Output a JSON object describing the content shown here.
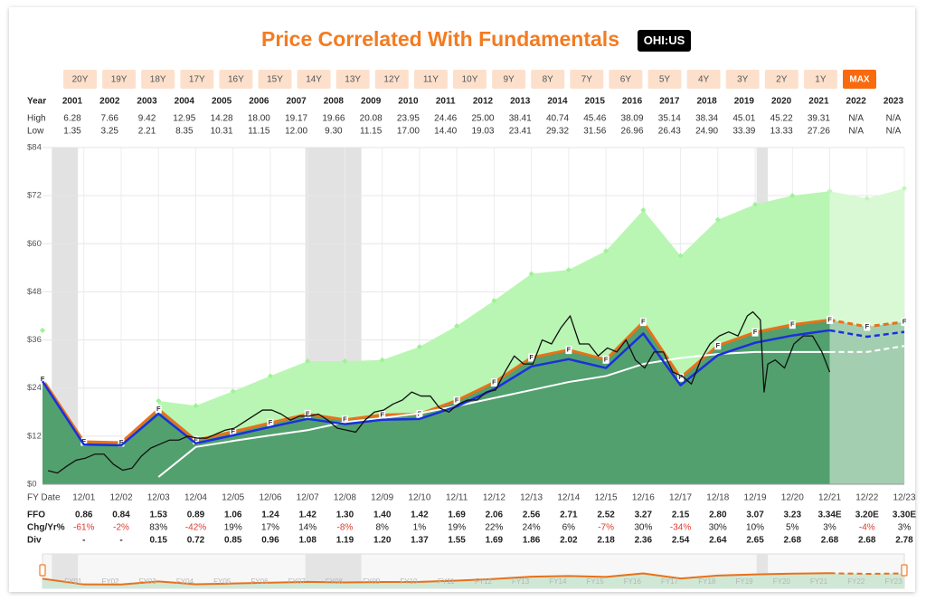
{
  "header": {
    "title": "Price Correlated With Fundamentals",
    "ticker": "OHI:US"
  },
  "range_buttons": [
    "20Y",
    "19Y",
    "18Y",
    "17Y",
    "16Y",
    "15Y",
    "14Y",
    "13Y",
    "12Y",
    "11Y",
    "10Y",
    "9Y",
    "8Y",
    "7Y",
    "6Y",
    "5Y",
    "4Y",
    "3Y",
    "2Y",
    "1Y",
    "MAX"
  ],
  "active_range": "MAX",
  "year_table": {
    "header_label": "Year",
    "years": [
      "2001",
      "2002",
      "2003",
      "2004",
      "2005",
      "2006",
      "2007",
      "2008",
      "2009",
      "2010",
      "2011",
      "2012",
      "2013",
      "2014",
      "2015",
      "2016",
      "2017",
      "2018",
      "2019",
      "2020",
      "2021",
      "2022",
      "2023"
    ],
    "rows": [
      {
        "label": "High",
        "values": [
          "6.28",
          "7.66",
          "9.42",
          "12.95",
          "14.28",
          "18.00",
          "19.17",
          "19.66",
          "20.08",
          "23.95",
          "24.46",
          "25.00",
          "38.41",
          "40.74",
          "45.46",
          "38.09",
          "35.14",
          "38.34",
          "45.01",
          "45.22",
          "39.31",
          "N/A",
          "N/A"
        ]
      },
      {
        "label": "Low",
        "values": [
          "1.35",
          "3.25",
          "2.21",
          "8.35",
          "10.31",
          "11.15",
          "12.00",
          "9.30",
          "11.15",
          "17.00",
          "14.40",
          "19.03",
          "23.41",
          "29.32",
          "31.56",
          "26.96",
          "26.43",
          "24.90",
          "33.39",
          "13.33",
          "27.26",
          "N/A",
          "N/A"
        ]
      }
    ]
  },
  "chart_data": {
    "type": "line",
    "x_label": "FY Date",
    "vertex_label": "F",
    "grid": true,
    "xlim": [
      2000.85,
      2023.96
    ],
    "ylim": [
      0,
      84
    ],
    "yticks": [
      {
        "value": 0,
        "label": "$0"
      },
      {
        "value": 12,
        "label": "$12"
      },
      {
        "value": 24,
        "label": "$24"
      },
      {
        "value": 36,
        "label": "$36"
      },
      {
        "value": 48,
        "label": "$48"
      },
      {
        "value": 60,
        "label": "$60"
      },
      {
        "value": 72,
        "label": "$72"
      },
      {
        "value": 84,
        "label": "$84"
      }
    ],
    "xticks": [
      {
        "value": 2001.96,
        "label": "12/01"
      },
      {
        "value": 2002.96,
        "label": "12/02"
      },
      {
        "value": 2003.96,
        "label": "12/03"
      },
      {
        "value": 2004.96,
        "label": "12/04"
      },
      {
        "value": 2005.96,
        "label": "12/05"
      },
      {
        "value": 2006.96,
        "label": "12/06"
      },
      {
        "value": 2007.96,
        "label": "12/07"
      },
      {
        "value": 2008.96,
        "label": "12/08"
      },
      {
        "value": 2009.96,
        "label": "12/09"
      },
      {
        "value": 2010.96,
        "label": "12/10"
      },
      {
        "value": 2011.96,
        "label": "12/11"
      },
      {
        "value": 2012.96,
        "label": "12/12"
      },
      {
        "value": 2013.96,
        "label": "12/13"
      },
      {
        "value": 2014.96,
        "label": "12/14"
      },
      {
        "value": 2015.96,
        "label": "12/15"
      },
      {
        "value": 2016.96,
        "label": "12/16"
      },
      {
        "value": 2017.96,
        "label": "12/17"
      },
      {
        "value": 2018.96,
        "label": "12/18"
      },
      {
        "value": 2019.96,
        "label": "12/19"
      },
      {
        "value": 2020.96,
        "label": "12/20"
      },
      {
        "value": 2021.96,
        "label": "12/21"
      },
      {
        "value": 2022.96,
        "label": "12/22"
      },
      {
        "value": 2023.96,
        "label": "12/23"
      }
    ],
    "shaded_periods": [
      [
        2001.1,
        2001.8
      ],
      [
        2007.9,
        2009.4
      ],
      [
        2020.0,
        2020.3
      ]
    ],
    "x": [
      2000.85,
      2001.96,
      2002.96,
      2003.96,
      2004.96,
      2005.96,
      2006.96,
      2007.96,
      2008.96,
      2009.96,
      2010.96,
      2011.96,
      2012.96,
      2013.96,
      2014.96,
      2015.96,
      2016.96,
      2017.96,
      2018.96,
      2019.96,
      2020.96,
      2021.96,
      2022.96,
      2023.96
    ],
    "series": [
      {
        "color": "#9ef297",
        "fill": "#b9f6b3",
        "markers": true,
        "values": [
          38.4,
          null,
          null,
          20.8,
          19.6,
          23.2,
          27,
          30.7,
          30.7,
          31,
          34.3,
          39.5,
          45.8,
          52.5,
          53.5,
          58.2,
          68.4,
          57,
          66,
          69.8,
          72,
          73.1,
          null,
          null
        ]
      },
      {
        "color": "#c2f5bd",
        "fill": "#d8f9d4",
        "markers": true,
        "values": [
          null,
          null,
          null,
          null,
          null,
          null,
          null,
          null,
          null,
          null,
          null,
          null,
          null,
          null,
          null,
          null,
          null,
          null,
          null,
          null,
          null,
          73.1,
          71.3,
          73.8
        ]
      },
      {
        "color": "#e8711a",
        "fill": "#52a06e",
        "width": 3,
        "labeled": true,
        "in_navigator": true,
        "values": [
          26.2,
          10.6,
          10.4,
          18.7,
          11.0,
          13.1,
          15.3,
          17.5,
          16.1,
          17.3,
          17.5,
          20.9,
          25.4,
          31.6,
          33.5,
          31.1,
          40.5,
          26.6,
          34.6,
          37.9,
          39.8,
          41.0,
          null,
          null
        ]
      },
      {
        "color": "#e8711a",
        "fill": "#a3cfb0",
        "width": 3,
        "dashed": true,
        "labeled": true,
        "in_navigator": true,
        "values": [
          null,
          null,
          null,
          null,
          null,
          null,
          null,
          null,
          null,
          null,
          null,
          null,
          null,
          null,
          null,
          null,
          null,
          null,
          null,
          null,
          null,
          41.0,
          39.3,
          40.5
        ]
      },
      {
        "color": "#ffffff",
        "width": 2,
        "values": [
          null,
          null,
          null,
          1.8,
          9.3,
          10.8,
          12.2,
          13.5,
          15.5,
          16.5,
          17.7,
          19.5,
          21.5,
          23.5,
          25.5,
          27,
          30,
          31.5,
          32.5,
          33,
          33,
          33,
          null,
          null
        ]
      },
      {
        "color": "#ffffff",
        "width": 2,
        "dashed": true,
        "values": [
          null,
          null,
          null,
          null,
          null,
          null,
          null,
          null,
          null,
          null,
          null,
          null,
          null,
          null,
          null,
          null,
          null,
          null,
          null,
          null,
          null,
          33,
          33,
          34.5
        ]
      },
      {
        "color": "#1a2fe0",
        "width": 2.5,
        "values": [
          25.7,
          9.9,
          9.7,
          17.6,
          10.2,
          12.2,
          14.3,
          16.3,
          15.0,
          16.1,
          16.3,
          19.4,
          23.7,
          29.4,
          31.2,
          29.0,
          37.6,
          24.7,
          32.2,
          35.3,
          37.1,
          38.4,
          null,
          null
        ]
      },
      {
        "color": "#1a2fe0",
        "width": 2.5,
        "dashed": true,
        "values": [
          null,
          null,
          null,
          null,
          null,
          null,
          null,
          null,
          null,
          null,
          null,
          null,
          null,
          null,
          null,
          null,
          null,
          null,
          null,
          null,
          null,
          38.4,
          36.8,
          38.0
        ]
      },
      {
        "color": "#111111",
        "width": 1.3,
        "x": [
          2001.0,
          2001.25,
          2001.5,
          2001.75,
          2002.0,
          2002.25,
          2002.5,
          2002.75,
          2003.0,
          2003.25,
          2003.5,
          2003.75,
          2004.0,
          2004.25,
          2004.5,
          2004.75,
          2005.0,
          2005.25,
          2005.5,
          2005.75,
          2006.0,
          2006.25,
          2006.5,
          2006.75,
          2007.0,
          2007.25,
          2007.5,
          2007.75,
          2008.0,
          2008.25,
          2008.5,
          2008.75,
          2009.0,
          2009.25,
          2009.5,
          2009.75,
          2010.0,
          2010.25,
          2010.5,
          2010.75,
          2011.0,
          2011.25,
          2011.5,
          2011.75,
          2012.0,
          2012.25,
          2012.5,
          2012.75,
          2013.0,
          2013.25,
          2013.5,
          2013.75,
          2014.0,
          2014.25,
          2014.5,
          2014.75,
          2015.0,
          2015.25,
          2015.5,
          2015.75,
          2016.0,
          2016.25,
          2016.5,
          2016.75,
          2017.0,
          2017.25,
          2017.5,
          2017.75,
          2018.0,
          2018.25,
          2018.5,
          2018.75,
          2019.0,
          2019.25,
          2019.5,
          2019.75,
          2019.9,
          2020.1,
          2020.2,
          2020.3,
          2020.5,
          2020.75,
          2021.0,
          2021.25,
          2021.5,
          2021.75,
          2021.96
        ],
        "values": [
          3.4,
          2.8,
          4.5,
          6,
          6.5,
          7.5,
          7.5,
          5,
          3.5,
          4,
          7,
          9,
          10,
          11,
          11,
          12,
          11.5,
          11.5,
          12.5,
          13.5,
          14,
          15.5,
          17,
          18.5,
          18.5,
          17.5,
          16,
          17,
          17,
          17.5,
          16,
          14,
          13.5,
          13,
          16,
          18,
          18.5,
          20,
          21,
          23,
          22,
          22,
          19,
          18,
          20,
          21,
          21,
          23,
          23.5,
          28,
          32,
          30,
          30,
          36,
          35,
          39,
          42,
          35,
          35,
          32,
          34,
          33,
          36,
          31,
          29,
          33,
          33,
          28,
          27,
          25,
          31,
          35,
          37,
          38,
          37,
          42,
          43,
          41,
          23,
          30,
          31,
          29,
          35,
          37,
          37,
          33,
          28
        ]
      }
    ],
    "navigator_labels": [
      "FY01",
      "FY02",
      "FY03",
      "FY04",
      "FY05",
      "FY06",
      "FY07",
      "FY08",
      "FY09",
      "FY10",
      "FY11",
      "FY12",
      "FY13",
      "FY14",
      "FY15",
      "FY16",
      "FY17",
      "FY18",
      "FY19",
      "FY20",
      "FY21",
      "FY22",
      "FY23"
    ]
  },
  "fundamentals": {
    "rows": [
      {
        "label": "FFO",
        "values": [
          "0.86",
          "0.84",
          "1.53",
          "0.89",
          "1.06",
          "1.24",
          "1.42",
          "1.30",
          "1.40",
          "1.42",
          "1.69",
          "2.06",
          "2.56",
          "2.71",
          "2.52",
          "3.27",
          "2.15",
          "2.80",
          "3.07",
          "3.23",
          "3.34E",
          "3.20E",
          "3.30E"
        ]
      },
      {
        "label": "Chg/Yr%",
        "values": [
          "-61%",
          "-2%",
          "83%",
          "-42%",
          "19%",
          "17%",
          "14%",
          "-8%",
          "8%",
          "1%",
          "19%",
          "22%",
          "24%",
          "6%",
          "-7%",
          "30%",
          "-34%",
          "30%",
          "10%",
          "5%",
          "3%",
          "-4%",
          "3%"
        ]
      },
      {
        "label": "Div",
        "values": [
          "-",
          "-",
          "0.15",
          "0.72",
          "0.85",
          "0.96",
          "1.08",
          "1.19",
          "1.20",
          "1.37",
          "1.55",
          "1.69",
          "1.86",
          "2.02",
          "2.18",
          "2.36",
          "2.54",
          "2.64",
          "2.65",
          "2.68",
          "2.68",
          "2.68",
          "2.78"
        ]
      }
    ]
  }
}
